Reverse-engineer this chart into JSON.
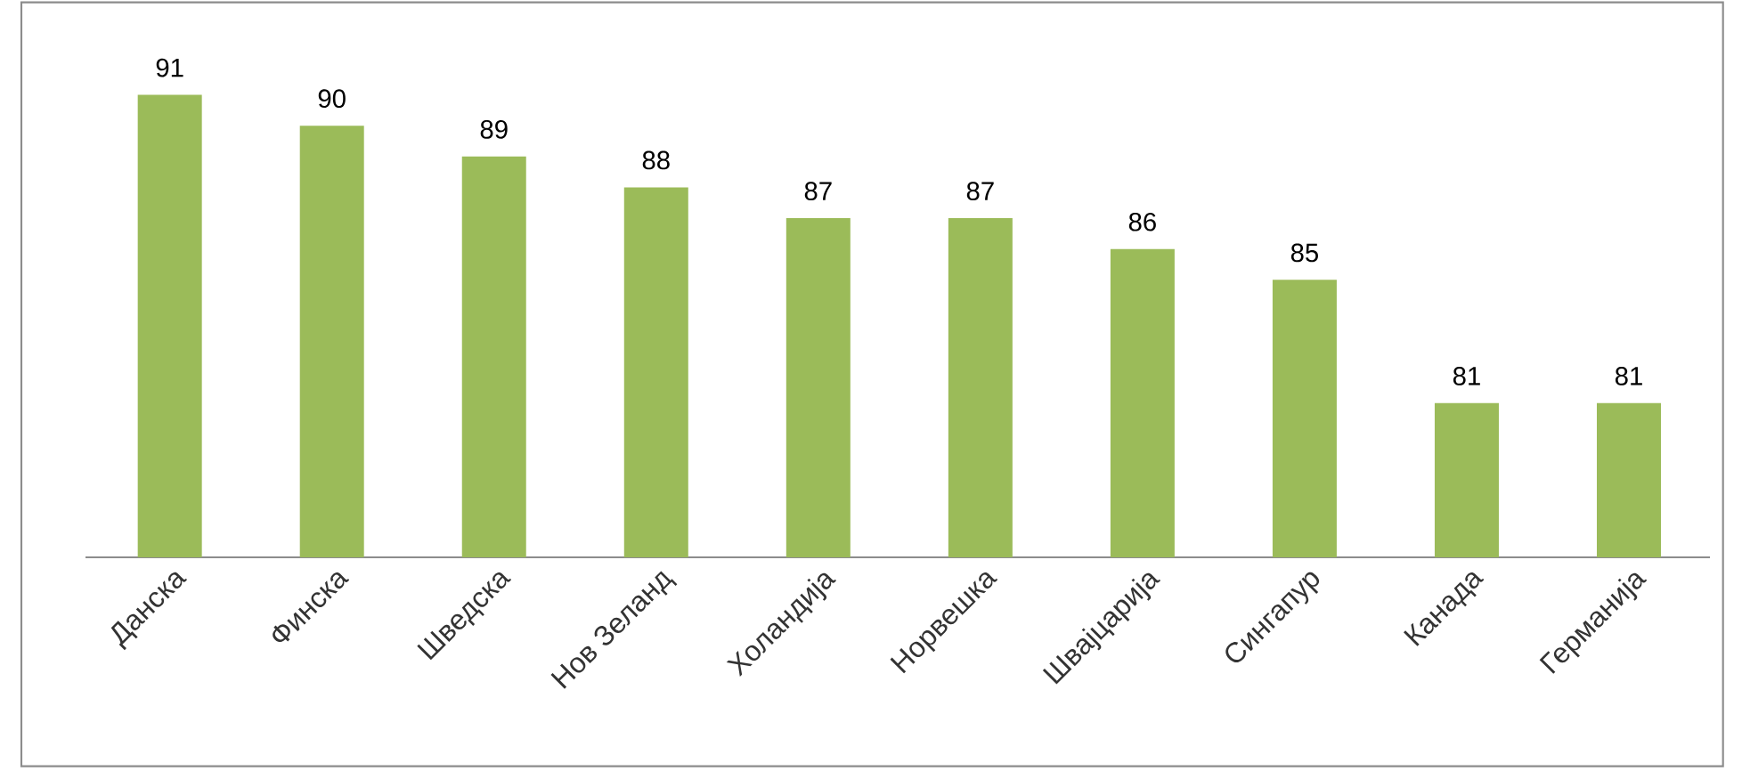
{
  "chart_data": {
    "type": "bar",
    "categories": [
      "Данска",
      "Финска",
      "Шведска",
      "Нов Зеланд",
      "Холандија",
      "Норвешка",
      "Швајцарија",
      "Сингапур",
      "Канада",
      "Германија"
    ],
    "values": [
      91,
      90,
      89,
      88,
      87,
      87,
      86,
      85,
      81,
      81
    ],
    "color": "#9bbb59",
    "ylim": [
      76,
      94
    ],
    "data_labels": true,
    "tick_labels": "x"
  }
}
